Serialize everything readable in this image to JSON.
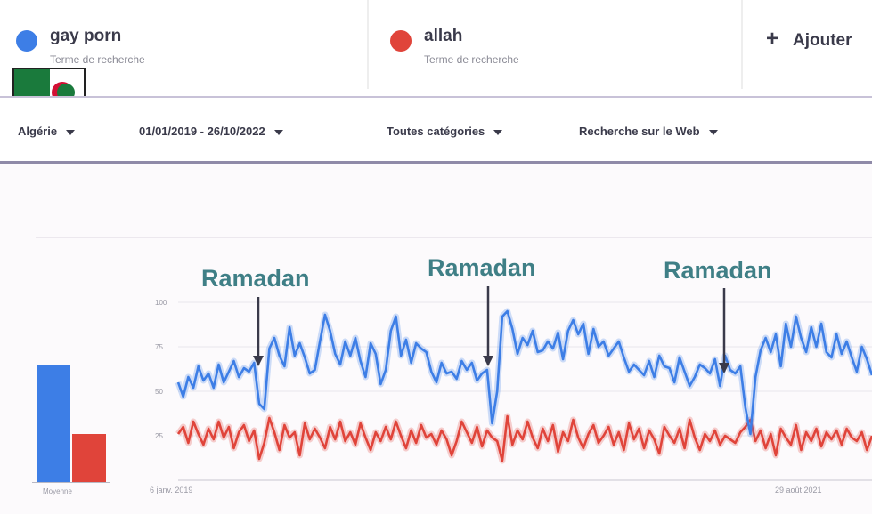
{
  "terms": [
    {
      "name": "gay porn",
      "subtitle": "Terme de recherche",
      "color": "#3d7ee6"
    },
    {
      "name": "allah",
      "subtitle": "Terme de recherche",
      "color": "#e0443a"
    }
  ],
  "add_label": "Ajouter",
  "filters": {
    "region": "Algérie",
    "date_range": "01/01/2019 - 26/10/2022",
    "category": "Toutes catégories",
    "search_type": "Recherche sur le Web"
  },
  "flag_icon": "algeria-flag-icon",
  "annotations": [
    "Ramadan",
    "Ramadan",
    "Ramadan"
  ],
  "average_label": "Moyenne",
  "chart_data": [
    {
      "type": "bar",
      "categories": [
        "gay porn",
        "allah"
      ],
      "values": [
        73,
        30
      ],
      "colors": [
        "#3d7ee6",
        "#e0443a"
      ],
      "xlabel": "Moyenne"
    },
    {
      "type": "line",
      "y_ticks": [
        "100",
        "75",
        "50",
        "25"
      ],
      "ylim": [
        0,
        100
      ],
      "x_ticks": [
        "6 janv. 2019",
        "",
        "29 août 2021"
      ],
      "grid": true,
      "series": [
        {
          "name": "gay porn",
          "color": "#3d7ee6",
          "values": [
            55,
            47,
            58,
            52,
            64,
            56,
            60,
            52,
            65,
            55,
            61,
            67,
            58,
            63,
            61,
            66,
            43,
            40,
            74,
            80,
            70,
            64,
            86,
            70,
            77,
            69,
            60,
            62,
            78,
            93,
            84,
            71,
            65,
            78,
            70,
            80,
            67,
            58,
            77,
            71,
            54,
            62,
            84,
            92,
            70,
            79,
            66,
            77,
            74,
            72,
            61,
            55,
            66,
            60,
            61,
            57,
            67,
            62,
            66,
            56,
            60,
            62,
            32,
            50,
            92,
            95,
            85,
            71,
            80,
            76,
            84,
            72,
            73,
            78,
            74,
            83,
            68,
            84,
            90,
            82,
            88,
            71,
            85,
            75,
            78,
            70,
            74,
            78,
            69,
            61,
            65,
            62,
            59,
            67,
            58,
            70,
            64,
            63,
            55,
            69,
            61,
            53,
            58,
            65,
            63,
            60,
            68,
            53,
            70,
            62,
            60,
            64,
            41,
            26,
            58,
            73,
            80,
            72,
            82,
            64,
            88,
            75,
            92,
            80,
            72,
            86,
            75,
            88,
            72,
            69,
            82,
            71,
            78,
            69,
            61,
            75,
            68,
            59
          ]
        },
        {
          "name": "allah",
          "color": "#e0443a",
          "values": [
            26,
            30,
            21,
            33,
            26,
            20,
            29,
            23,
            33,
            24,
            30,
            18,
            27,
            31,
            22,
            28,
            12,
            21,
            35,
            27,
            17,
            31,
            24,
            27,
            14,
            32,
            23,
            29,
            24,
            18,
            30,
            23,
            33,
            22,
            27,
            20,
            32,
            24,
            17,
            27,
            22,
            30,
            23,
            33,
            25,
            18,
            28,
            21,
            31,
            24,
            26,
            20,
            28,
            23,
            14,
            22,
            33,
            27,
            21,
            30,
            19,
            28,
            24,
            22,
            11,
            36,
            20,
            28,
            23,
            33,
            24,
            18,
            29,
            22,
            31,
            16,
            27,
            22,
            34,
            24,
            18,
            26,
            31,
            21,
            25,
            30,
            20,
            27,
            17,
            32,
            23,
            29,
            18,
            28,
            23,
            15,
            30,
            25,
            21,
            29,
            18,
            34,
            24,
            17,
            26,
            22,
            28,
            20,
            25,
            23,
            21,
            27,
            30,
            34,
            22,
            28,
            18,
            26,
            14,
            29,
            24,
            20,
            31,
            17,
            27,
            22,
            29,
            19,
            27,
            23,
            28,
            20,
            29,
            24,
            22,
            27,
            17,
            25
          ]
        }
      ]
    }
  ]
}
